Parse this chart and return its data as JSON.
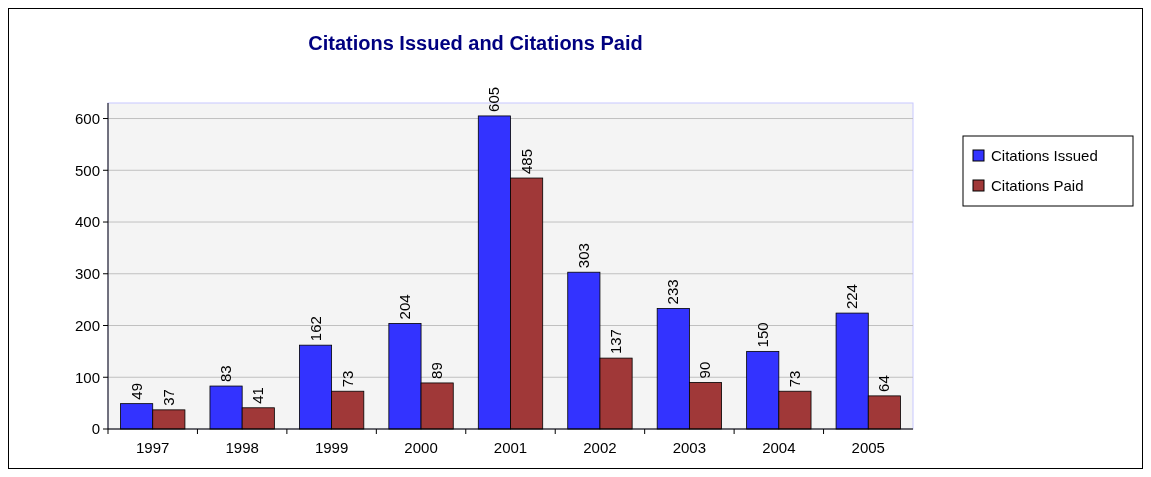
{
  "chart_data": {
    "type": "bar",
    "title": "Citations Issued and Citations Paid",
    "categories": [
      "1997",
      "1998",
      "1999",
      "2000",
      "2001",
      "2002",
      "2003",
      "2004",
      "2005"
    ],
    "series": [
      {
        "name": "Citations Issued",
        "color": "#3333ff",
        "values": [
          49,
          83,
          162,
          204,
          605,
          303,
          233,
          150,
          224
        ]
      },
      {
        "name": "Citations Paid",
        "color": "#a03838",
        "values": [
          37,
          41,
          73,
          89,
          485,
          137,
          90,
          73,
          64
        ]
      }
    ],
    "ylim": [
      0,
      630
    ],
    "yticks": [
      0,
      100,
      200,
      300,
      400,
      500,
      600
    ],
    "grid": "y",
    "legend": "right",
    "data_labels": true
  }
}
